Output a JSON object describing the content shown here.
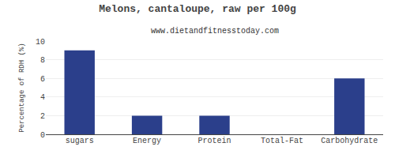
{
  "chart_data": {
    "type": "bar",
    "title": "Melons, cantaloupe, raw per 100g",
    "subtitle": "www.dietandfitnesstoday.com",
    "categories": [
      "sugars",
      "Energy",
      "Protein",
      "Total-Fat",
      "Carbohydrate"
    ],
    "values": [
      9,
      2,
      2,
      0,
      6
    ],
    "color": "#2b3f8b",
    "ylabel": "Percentage of RDH (%)",
    "ylim": [
      0,
      10
    ],
    "yticks": [
      0,
      2,
      4,
      6,
      8,
      10
    ],
    "grid": true
  }
}
